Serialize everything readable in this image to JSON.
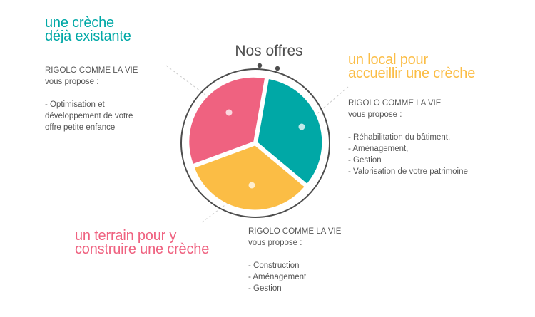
{
  "diagram_title": "Nos offres",
  "colors": {
    "teal": "#00a8a6",
    "yellow": "#fbbd45",
    "pink": "#ef6280",
    "ring": "#4d4d4d",
    "dash": "#cccccc",
    "text": "#555555",
    "title": "#4d4d4d"
  },
  "segments": [
    {
      "key": "existing",
      "share": 0.333,
      "color": "#00a8a6"
    },
    {
      "key": "local",
      "share": 0.333,
      "color": "#fbbd45"
    },
    {
      "key": "terrain",
      "share": 0.334,
      "color": "#ef6280"
    }
  ],
  "offers": [
    {
      "key": "existing",
      "title_lines": [
        "une crèche",
        "déjà existante"
      ],
      "color": "#00a8a6",
      "brand": "RIGOLO COMME LA VIE",
      "subtitle": "vous propose :",
      "items": [
        "- Optimisation et",
        "développement de votre",
        "offre petite enfance"
      ]
    },
    {
      "key": "local",
      "title_lines": [
        "un local pour",
        "accueillir une crèche"
      ],
      "color": "#fbbd45",
      "brand": "RIGOLO COMME LA VIE",
      "subtitle": "vous propose :",
      "items": [
        "- Réhabilitation du bâtiment,",
        "- Aménagement,",
        "- Gestion",
        "- Valorisation de votre patrimoine"
      ]
    },
    {
      "key": "terrain",
      "title_lines": [
        "un terrain pour y",
        "construire une crèche"
      ],
      "color": "#ef6280",
      "brand": "RIGOLO COMME LA VIE",
      "subtitle": "vous propose :",
      "items": [
        "- Construction",
        "- Aménagement",
        "- Gestion"
      ]
    }
  ]
}
